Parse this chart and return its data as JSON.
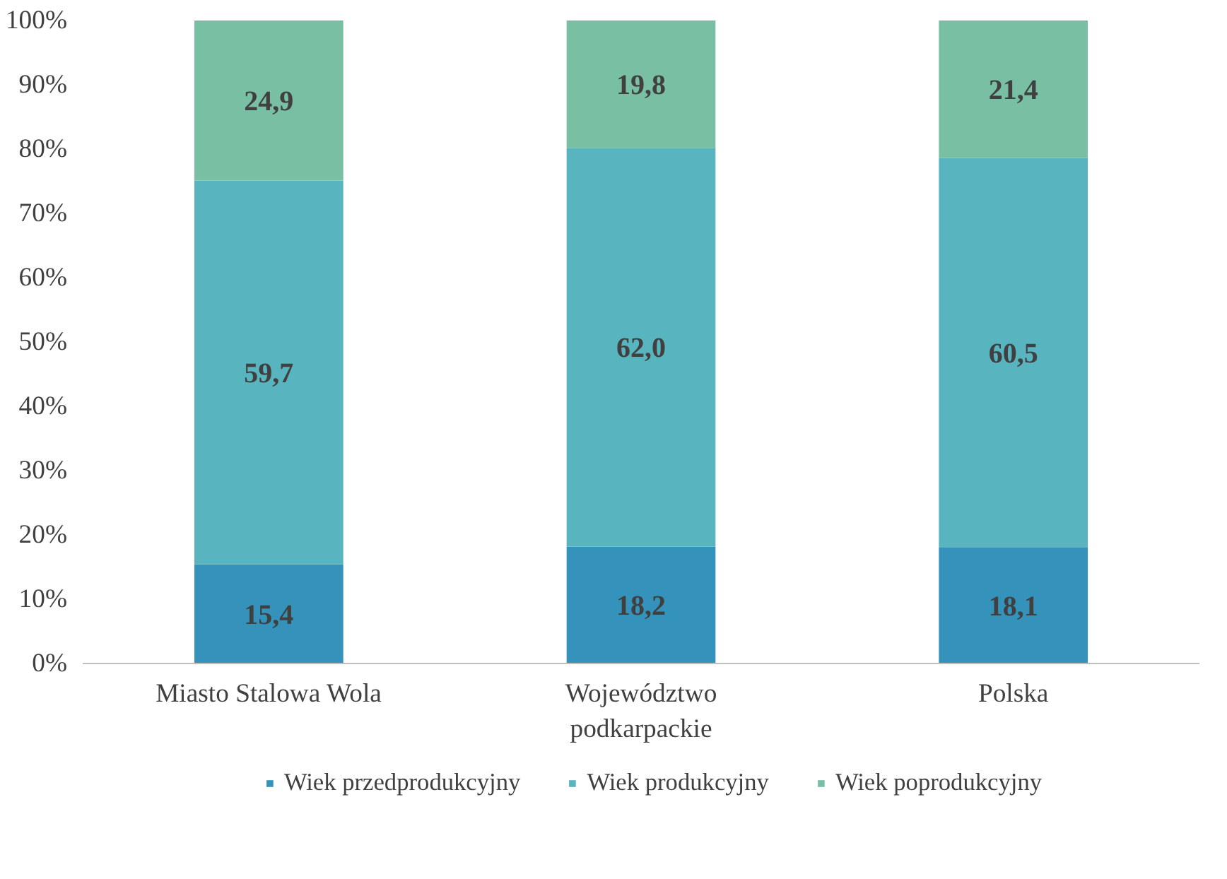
{
  "chart_data": {
    "type": "bar",
    "stacked": true,
    "categories": [
      "Miasto Stalowa Wola",
      "Województwo podkarpackie",
      "Polska"
    ],
    "series": [
      {
        "name": "Wiek przedprodukcyjny",
        "color": "#3592bb",
        "values": [
          15.4,
          18.2,
          18.1
        ],
        "value_labels": [
          "15,4",
          "18,2",
          "18,1"
        ]
      },
      {
        "name": "Wiek produkcyjny",
        "color": "#58b5bf",
        "values": [
          59.7,
          62.0,
          60.5
        ],
        "value_labels": [
          "59,7",
          "62,0",
          "60,5"
        ]
      },
      {
        "name": "Wiek poprodukcyjny",
        "color": "#78bfa4",
        "values": [
          24.9,
          19.8,
          21.4
        ],
        "value_labels": [
          "24,9",
          "19,8",
          "21,4"
        ]
      }
    ],
    "ylim": [
      0,
      100
    ],
    "yticks": [
      {
        "value": 0,
        "label": "0%"
      },
      {
        "value": 10,
        "label": "10%"
      },
      {
        "value": 20,
        "label": "20%"
      },
      {
        "value": 30,
        "label": "30%"
      },
      {
        "value": 40,
        "label": "40%"
      },
      {
        "value": 50,
        "label": "50%"
      },
      {
        "value": 60,
        "label": "60%"
      },
      {
        "value": 70,
        "label": "70%"
      },
      {
        "value": 80,
        "label": "80%"
      },
      {
        "value": 90,
        "label": "90%"
      },
      {
        "value": 100,
        "label": "100%"
      }
    ],
    "grid": false,
    "legend": "bottom"
  }
}
